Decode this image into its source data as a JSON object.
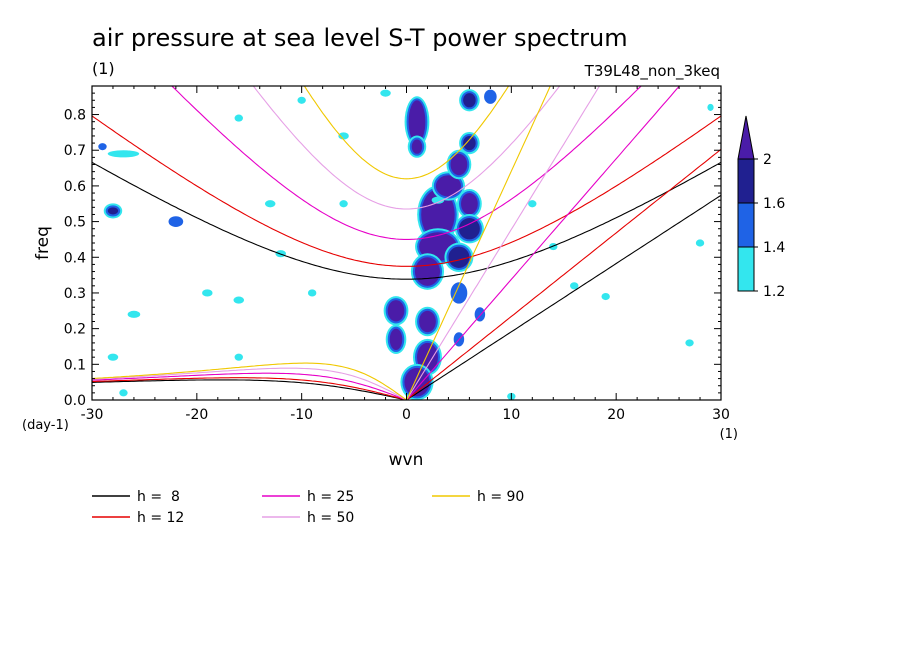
{
  "chart_data": {
    "type": "heatmap",
    "title": "air pressure at sea level S-T power spectrum",
    "subtitle_left": "(1)",
    "subtitle_right": "T39L48_non_3keq",
    "xlabel": "wvn",
    "ylabel": "freq",
    "x_unit": "(1)",
    "y_unit": "(day-1)",
    "xlim": [
      -30,
      30
    ],
    "ylim": [
      0,
      0.88
    ],
    "x_ticks": [
      -30,
      -20,
      -10,
      0,
      10,
      20,
      30
    ],
    "x_tick_labels": [
      "-30",
      "-20",
      "-10",
      "0",
      "10",
      "20",
      "30"
    ],
    "y_ticks": [
      0,
      0.1,
      0.2,
      0.3,
      0.4,
      0.5,
      0.6,
      0.7,
      0.8
    ],
    "y_tick_labels": [
      "0.0",
      "0.1",
      "0.2",
      "0.3",
      "0.4",
      "0.5",
      "0.6",
      "0.7",
      "0.8"
    ],
    "colorbar": {
      "levels": [
        1.2,
        1.4,
        1.6,
        2
      ],
      "level_labels": [
        "1.2",
        "1.4",
        "1.6",
        "2"
      ],
      "colors": [
        "#33e6ee",
        "#1f63e6",
        "#202090",
        "#4a1ca8"
      ]
    },
    "equivalent_depth_curves": [
      {
        "name": "h =  8",
        "h": 8,
        "color": "#000000"
      },
      {
        "name": "h = 12",
        "h": 12,
        "color": "#e60000"
      },
      {
        "name": "h = 25",
        "h": 25,
        "color": "#e600c8"
      },
      {
        "name": "h = 50",
        "h": 50,
        "color": "#e6a0e6"
      },
      {
        "name": "h = 90",
        "h": 90,
        "color": "#f0c800"
      }
    ],
    "legend_placement": "bottom",
    "high_power_blobs": [
      {
        "wvn": 1,
        "freq": 0.78,
        "level": 2,
        "rw": 0.8,
        "rf": 0.06
      },
      {
        "wvn": 1,
        "freq": 0.71,
        "level": 2,
        "rw": 0.5,
        "rf": 0.02
      },
      {
        "wvn": 3,
        "freq": 0.52,
        "level": 2,
        "rw": 1.6,
        "rf": 0.07
      },
      {
        "wvn": 3,
        "freq": 0.43,
        "level": 2,
        "rw": 1.8,
        "rf": 0.04
      },
      {
        "wvn": 2,
        "freq": 0.36,
        "level": 2,
        "rw": 1.2,
        "rf": 0.04
      },
      {
        "wvn": 4,
        "freq": 0.6,
        "level": 2,
        "rw": 1.2,
        "rf": 0.03
      },
      {
        "wvn": 5,
        "freq": 0.66,
        "level": 2,
        "rw": 0.8,
        "rf": 0.03
      },
      {
        "wvn": 6,
        "freq": 0.55,
        "level": 2,
        "rw": 0.8,
        "rf": 0.03
      },
      {
        "wvn": 6,
        "freq": 0.48,
        "level": 1.6,
        "rw": 1.0,
        "rf": 0.03
      },
      {
        "wvn": 5,
        "freq": 0.4,
        "level": 1.6,
        "rw": 1.0,
        "rf": 0.03
      },
      {
        "wvn": -1,
        "freq": 0.25,
        "level": 2,
        "rw": 0.8,
        "rf": 0.03
      },
      {
        "wvn": -1,
        "freq": 0.17,
        "level": 2,
        "rw": 0.6,
        "rf": 0.03
      },
      {
        "wvn": 2,
        "freq": 0.22,
        "level": 2,
        "rw": 0.8,
        "rf": 0.03
      },
      {
        "wvn": 2,
        "freq": 0.12,
        "level": 2,
        "rw": 1.0,
        "rf": 0.04
      },
      {
        "wvn": 1,
        "freq": 0.05,
        "level": 2,
        "rw": 1.2,
        "rf": 0.04
      },
      {
        "wvn": 6,
        "freq": 0.72,
        "level": 1.6,
        "rw": 0.6,
        "rf": 0.02
      },
      {
        "wvn": 6,
        "freq": 0.84,
        "level": 1.6,
        "rw": 0.6,
        "rf": 0.02
      },
      {
        "wvn": 8,
        "freq": 0.85,
        "level": 1.4,
        "rw": 0.6,
        "rf": 0.02
      },
      {
        "wvn": 5,
        "freq": 0.3,
        "level": 1.4,
        "rw": 0.8,
        "rf": 0.03
      },
      {
        "wvn": 7,
        "freq": 0.24,
        "level": 1.4,
        "rw": 0.5,
        "rf": 0.02
      },
      {
        "wvn": 5,
        "freq": 0.17,
        "level": 1.4,
        "rw": 0.5,
        "rf": 0.02
      },
      {
        "wvn": -28,
        "freq": 0.53,
        "level": 1.6,
        "rw": 0.5,
        "rf": 0.01
      },
      {
        "wvn": -27,
        "freq": 0.69,
        "level": 1.2,
        "rw": 1.5,
        "rf": 0.01
      },
      {
        "wvn": -22,
        "freq": 0.5,
        "level": 1.4,
        "rw": 0.7,
        "rf": 0.015
      },
      {
        "wvn": -29,
        "freq": 0.71,
        "level": 1.4,
        "rw": 0.4,
        "rf": 0.01
      },
      {
        "wvn": -16,
        "freq": 0.79,
        "level": 1.2,
        "rw": 0.4,
        "rf": 0.01
      },
      {
        "wvn": -13,
        "freq": 0.55,
        "level": 1.2,
        "rw": 0.5,
        "rf": 0.01
      },
      {
        "wvn": -6,
        "freq": 0.74,
        "level": 1.2,
        "rw": 0.5,
        "rf": 0.01
      },
      {
        "wvn": -10,
        "freq": 0.84,
        "level": 1.2,
        "rw": 0.4,
        "rf": 0.01
      },
      {
        "wvn": -26,
        "freq": 0.24,
        "level": 1.2,
        "rw": 0.6,
        "rf": 0.01
      },
      {
        "wvn": -19,
        "freq": 0.3,
        "level": 1.2,
        "rw": 0.5,
        "rf": 0.01
      },
      {
        "wvn": -16,
        "freq": 0.28,
        "level": 1.2,
        "rw": 0.5,
        "rf": 0.01
      },
      {
        "wvn": -12,
        "freq": 0.41,
        "level": 1.2,
        "rw": 0.5,
        "rf": 0.01
      },
      {
        "wvn": -9,
        "freq": 0.3,
        "level": 1.2,
        "rw": 0.4,
        "rf": 0.01
      },
      {
        "wvn": -16,
        "freq": 0.12,
        "level": 1.2,
        "rw": 0.4,
        "rf": 0.01
      },
      {
        "wvn": -28,
        "freq": 0.12,
        "level": 1.2,
        "rw": 0.5,
        "rf": 0.01
      },
      {
        "wvn": -6,
        "freq": 0.55,
        "level": 1.2,
        "rw": 0.4,
        "rf": 0.01
      },
      {
        "wvn": 3,
        "freq": 0.56,
        "level": 1.2,
        "rw": 0.6,
        "rf": 0.01
      },
      {
        "wvn": 12,
        "freq": 0.55,
        "level": 1.2,
        "rw": 0.4,
        "rf": 0.01
      },
      {
        "wvn": 14,
        "freq": 0.43,
        "level": 1.2,
        "rw": 0.4,
        "rf": 0.01
      },
      {
        "wvn": 16,
        "freq": 0.32,
        "level": 1.2,
        "rw": 0.4,
        "rf": 0.01
      },
      {
        "wvn": 19,
        "freq": 0.29,
        "level": 1.2,
        "rw": 0.4,
        "rf": 0.01
      },
      {
        "wvn": 27,
        "freq": 0.16,
        "level": 1.2,
        "rw": 0.4,
        "rf": 0.01
      },
      {
        "wvn": 28,
        "freq": 0.44,
        "level": 1.2,
        "rw": 0.4,
        "rf": 0.01
      },
      {
        "wvn": 29,
        "freq": 0.82,
        "level": 1.2,
        "rw": 0.3,
        "rf": 0.01
      },
      {
        "wvn": 10,
        "freq": 0.01,
        "level": 1.2,
        "rw": 0.4,
        "rf": 0.01
      },
      {
        "wvn": -27,
        "freq": 0.02,
        "level": 1.2,
        "rw": 0.4,
        "rf": 0.01
      },
      {
        "wvn": -2,
        "freq": 0.86,
        "level": 1.2,
        "rw": 0.5,
        "rf": 0.01
      }
    ]
  }
}
